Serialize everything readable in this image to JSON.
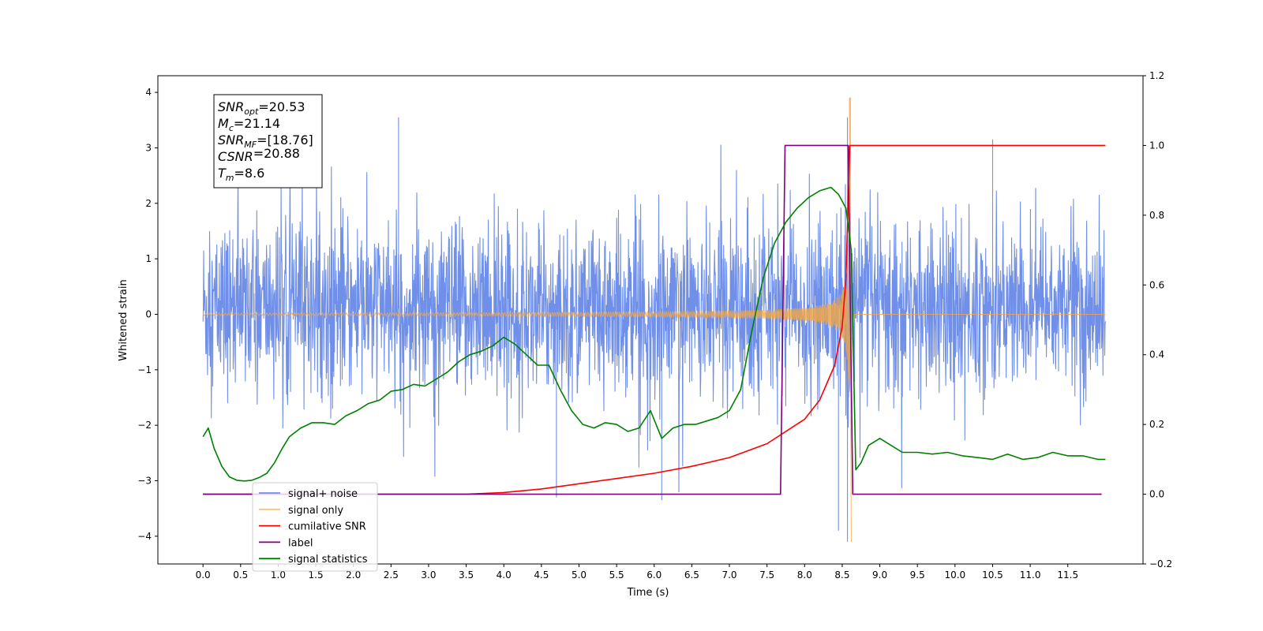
{
  "chart_data": {
    "type": "line",
    "xlabel": "Time (s)",
    "ylabel": "Whitened strain",
    "xlim": [
      -0.6,
      12.5
    ],
    "ylim_left": [
      -4.5,
      4.3
    ],
    "ylim_right": [
      -0.2,
      1.2
    ],
    "x_ticks": [
      "0.0",
      "0.5",
      "1.0",
      "1.5",
      "2.0",
      "2.5",
      "3.0",
      "3.5",
      "4.0",
      "4.5",
      "5.0",
      "5.5",
      "6.0",
      "6.5",
      "7.0",
      "7.5",
      "8.0",
      "8.5",
      "9.0",
      "9.5",
      "10.0",
      "10.5",
      "11.0",
      "11.5"
    ],
    "y_ticks_left": [
      "4",
      "3",
      "2",
      "1",
      "0",
      "−1",
      "−2",
      "−3",
      "−4"
    ],
    "y_ticks_right": [
      "1.2",
      "1.0",
      "0.8",
      "0.6",
      "0.4",
      "0.2",
      "0.0",
      "−0.2"
    ],
    "grid": false,
    "legend_position": "lower-left",
    "colors": {
      "signal_noise": "#6f8fe8",
      "signal_only": "#f5a742",
      "cumulative_snr": "#ff0000",
      "label": "#800080",
      "signal_statistics": "#008000"
    },
    "annotation": [
      {
        "base": "SNR",
        "sub": "opt",
        "value": "=20.53"
      },
      {
        "base": "M",
        "sub": "c",
        "value": "=21.14"
      },
      {
        "base": "SNR",
        "sub": "MF",
        "value": "=[18.76]"
      },
      {
        "base": "CSNR",
        "sub": "",
        "value": "=20.88"
      },
      {
        "base": "T",
        "sub": "m",
        "value": "=8.6"
      }
    ],
    "legend": [
      "signal+ noise",
      "signal only",
      "cumilative SNR",
      "label",
      "signal statistics"
    ],
    "series": [
      {
        "name": "signal+ noise",
        "axis": "left",
        "kind": "noise",
        "x_range": [
          0.0,
          12.0
        ],
        "typical_band": [
          -1.8,
          2.2
        ],
        "extremes": [
          {
            "x": 2.6,
            "y": 3.55
          },
          {
            "x": 10.5,
            "y": 3.15
          },
          {
            "x": 8.57,
            "y": 3.55
          },
          {
            "x": 8.57,
            "y": -4.1
          },
          {
            "x": 8.45,
            "y": -3.9
          },
          {
            "x": 6.1,
            "y": -3.35
          },
          {
            "x": 4.7,
            "y": -3.3
          }
        ]
      },
      {
        "name": "signal only",
        "axis": "left",
        "kind": "chirp",
        "x_range": [
          0.0,
          12.0
        ],
        "merger_time": 8.6,
        "peak": 3.9,
        "trough": -4.1
      },
      {
        "name": "cumilative SNR",
        "axis": "right",
        "x": [
          0.0,
          3.0,
          3.5,
          4.0,
          4.5,
          5.0,
          5.5,
          6.0,
          6.5,
          7.0,
          7.5,
          8.0,
          8.2,
          8.4,
          8.5,
          8.55,
          8.6,
          12.0
        ],
        "y": [
          0.0,
          0.0,
          0.0,
          0.005,
          0.015,
          0.03,
          0.045,
          0.06,
          0.08,
          0.105,
          0.145,
          0.215,
          0.27,
          0.37,
          0.48,
          0.62,
          1.0,
          1.0
        ]
      },
      {
        "name": "label",
        "axis": "right",
        "x": [
          0.0,
          7.68,
          7.74,
          8.58,
          8.64,
          11.95
        ],
        "y": [
          0.0,
          0.0,
          1.0,
          1.0,
          0.0,
          0.0
        ]
      },
      {
        "name": "signal statistics",
        "axis": "right",
        "x": [
          0.0,
          0.07,
          0.15,
          0.25,
          0.35,
          0.45,
          0.55,
          0.65,
          0.75,
          0.85,
          0.95,
          1.05,
          1.15,
          1.3,
          1.45,
          1.6,
          1.75,
          1.9,
          2.05,
          2.2,
          2.35,
          2.5,
          2.65,
          2.8,
          2.95,
          3.1,
          3.25,
          3.4,
          3.55,
          3.7,
          3.85,
          4.0,
          4.15,
          4.3,
          4.45,
          4.6,
          4.75,
          4.9,
          5.05,
          5.2,
          5.35,
          5.5,
          5.65,
          5.8,
          5.95,
          6.1,
          6.25,
          6.4,
          6.55,
          6.7,
          6.85,
          7.0,
          7.15,
          7.3,
          7.45,
          7.6,
          7.75,
          7.9,
          8.05,
          8.2,
          8.35,
          8.45,
          8.55,
          8.62,
          8.68,
          8.75,
          8.85,
          9.0,
          9.15,
          9.3,
          9.5,
          9.7,
          9.9,
          10.1,
          10.3,
          10.5,
          10.7,
          10.9,
          11.1,
          11.3,
          11.5,
          11.7,
          11.9,
          12.0
        ],
        "y": [
          0.165,
          0.19,
          0.13,
          0.08,
          0.05,
          0.04,
          0.038,
          0.04,
          0.048,
          0.06,
          0.09,
          0.13,
          0.165,
          0.19,
          0.205,
          0.205,
          0.2,
          0.225,
          0.24,
          0.26,
          0.27,
          0.295,
          0.3,
          0.315,
          0.31,
          0.33,
          0.35,
          0.38,
          0.4,
          0.41,
          0.425,
          0.45,
          0.43,
          0.4,
          0.37,
          0.37,
          0.3,
          0.24,
          0.2,
          0.19,
          0.205,
          0.2,
          0.18,
          0.19,
          0.24,
          0.16,
          0.19,
          0.2,
          0.2,
          0.21,
          0.22,
          0.24,
          0.3,
          0.47,
          0.62,
          0.72,
          0.78,
          0.82,
          0.85,
          0.87,
          0.88,
          0.86,
          0.82,
          0.7,
          0.07,
          0.09,
          0.14,
          0.16,
          0.14,
          0.12,
          0.12,
          0.115,
          0.12,
          0.11,
          0.105,
          0.1,
          0.115,
          0.1,
          0.105,
          0.12,
          0.11,
          0.11,
          0.1,
          0.1
        ]
      }
    ]
  }
}
